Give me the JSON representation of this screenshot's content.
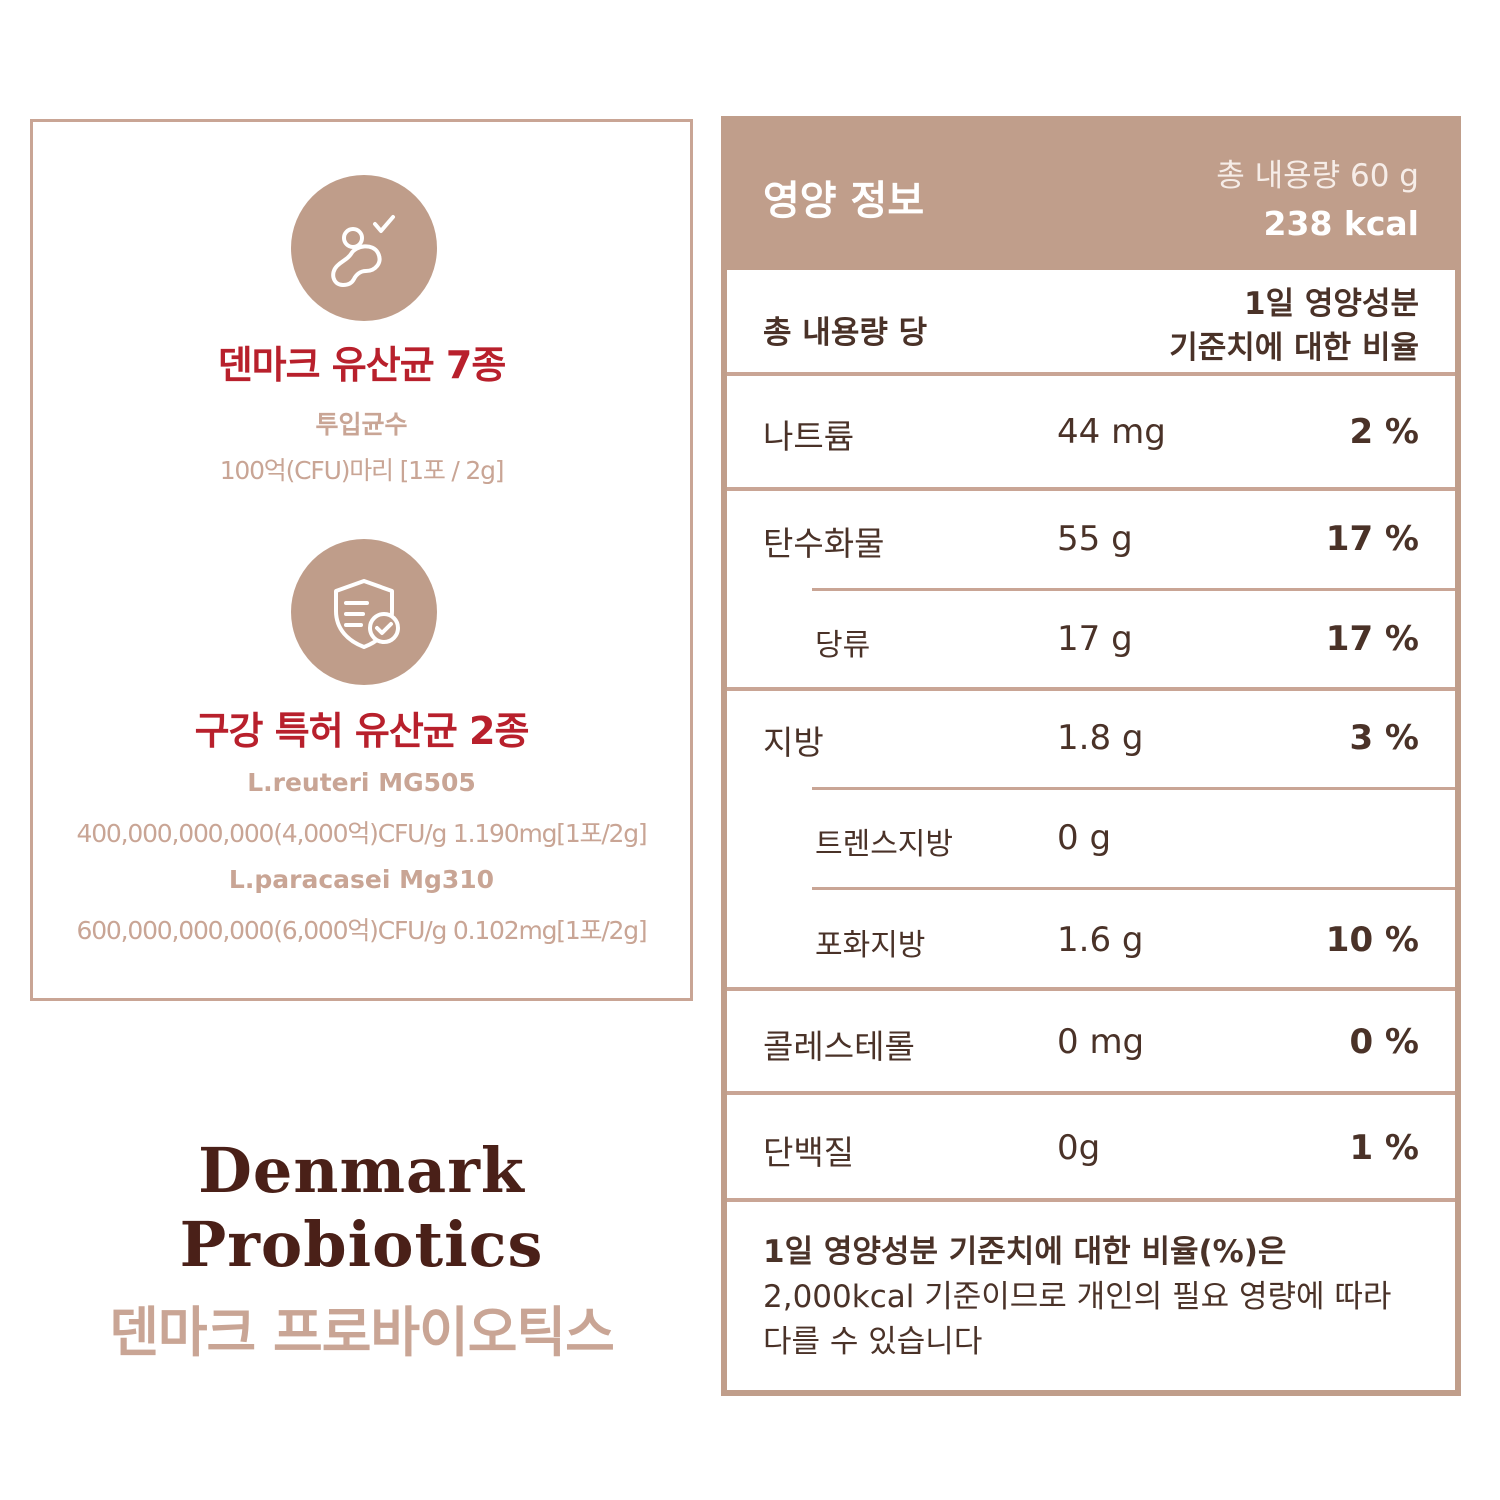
{
  "left": {
    "section1": {
      "title": "덴마크 유산균 7종",
      "subtitle": "투입균수",
      "detail": "100억(CFU)마리 [1포 / 2g]",
      "icon": "probiotic-bacteria-icon"
    },
    "section2": {
      "title": "구강 특허 유산균 2종",
      "strain1_name": "L.reuteri MG505",
      "strain1_detail": "400,000,000,000(4,000억)CFU/g 1.190mg[1포/2g]",
      "strain2_name": "L.paracasei Mg310",
      "strain2_detail": "600,000,000,000(6,000억)CFU/g 0.102mg[1포/2g]",
      "icon": "shield-check-icon"
    }
  },
  "brand": {
    "line1": "Denmark",
    "line2": "Probiotics",
    "korean": "덴마크 프로바이오틱스"
  },
  "nutrition": {
    "title": "영양 정보",
    "total_amount": "총 내용량 60 g",
    "kcal": "238 kcal",
    "per_label": "총 내용량 당",
    "ratio_label_1": "1일 영양성분",
    "ratio_label_2": "기준치에 대한 비율",
    "rows": [
      {
        "name": "나트륨",
        "amount": "44 mg",
        "percent": "2 %"
      },
      {
        "name": "탄수화물",
        "amount": "55 g",
        "percent": "17 %"
      },
      {
        "name": "당류",
        "amount": "17 g",
        "percent": "17 %"
      },
      {
        "name": "지방",
        "amount": "1.8 g",
        "percent": "3 %"
      },
      {
        "name": "트렌스지방",
        "amount": "0 g",
        "percent": ""
      },
      {
        "name": "포화지방",
        "amount": "1.6 g",
        "percent": "10 %"
      },
      {
        "name": "콜레스테롤",
        "amount": "0 mg",
        "percent": "0 %"
      },
      {
        "name": "단백질",
        "amount": "0g",
        "percent": "1 %"
      }
    ],
    "footnote_bold": "1일 영양성분 기준치에 대한 비율(%)은",
    "footnote_line2": "2,000kcal 기준이므로 개인의 필요 영량에 따라",
    "footnote_line3": "다를 수 있습니다"
  },
  "colors": {
    "accent": "#c09e8b",
    "title_red": "#b8202c",
    "brand_brown": "#4a2018",
    "muted": "#c9a595"
  }
}
